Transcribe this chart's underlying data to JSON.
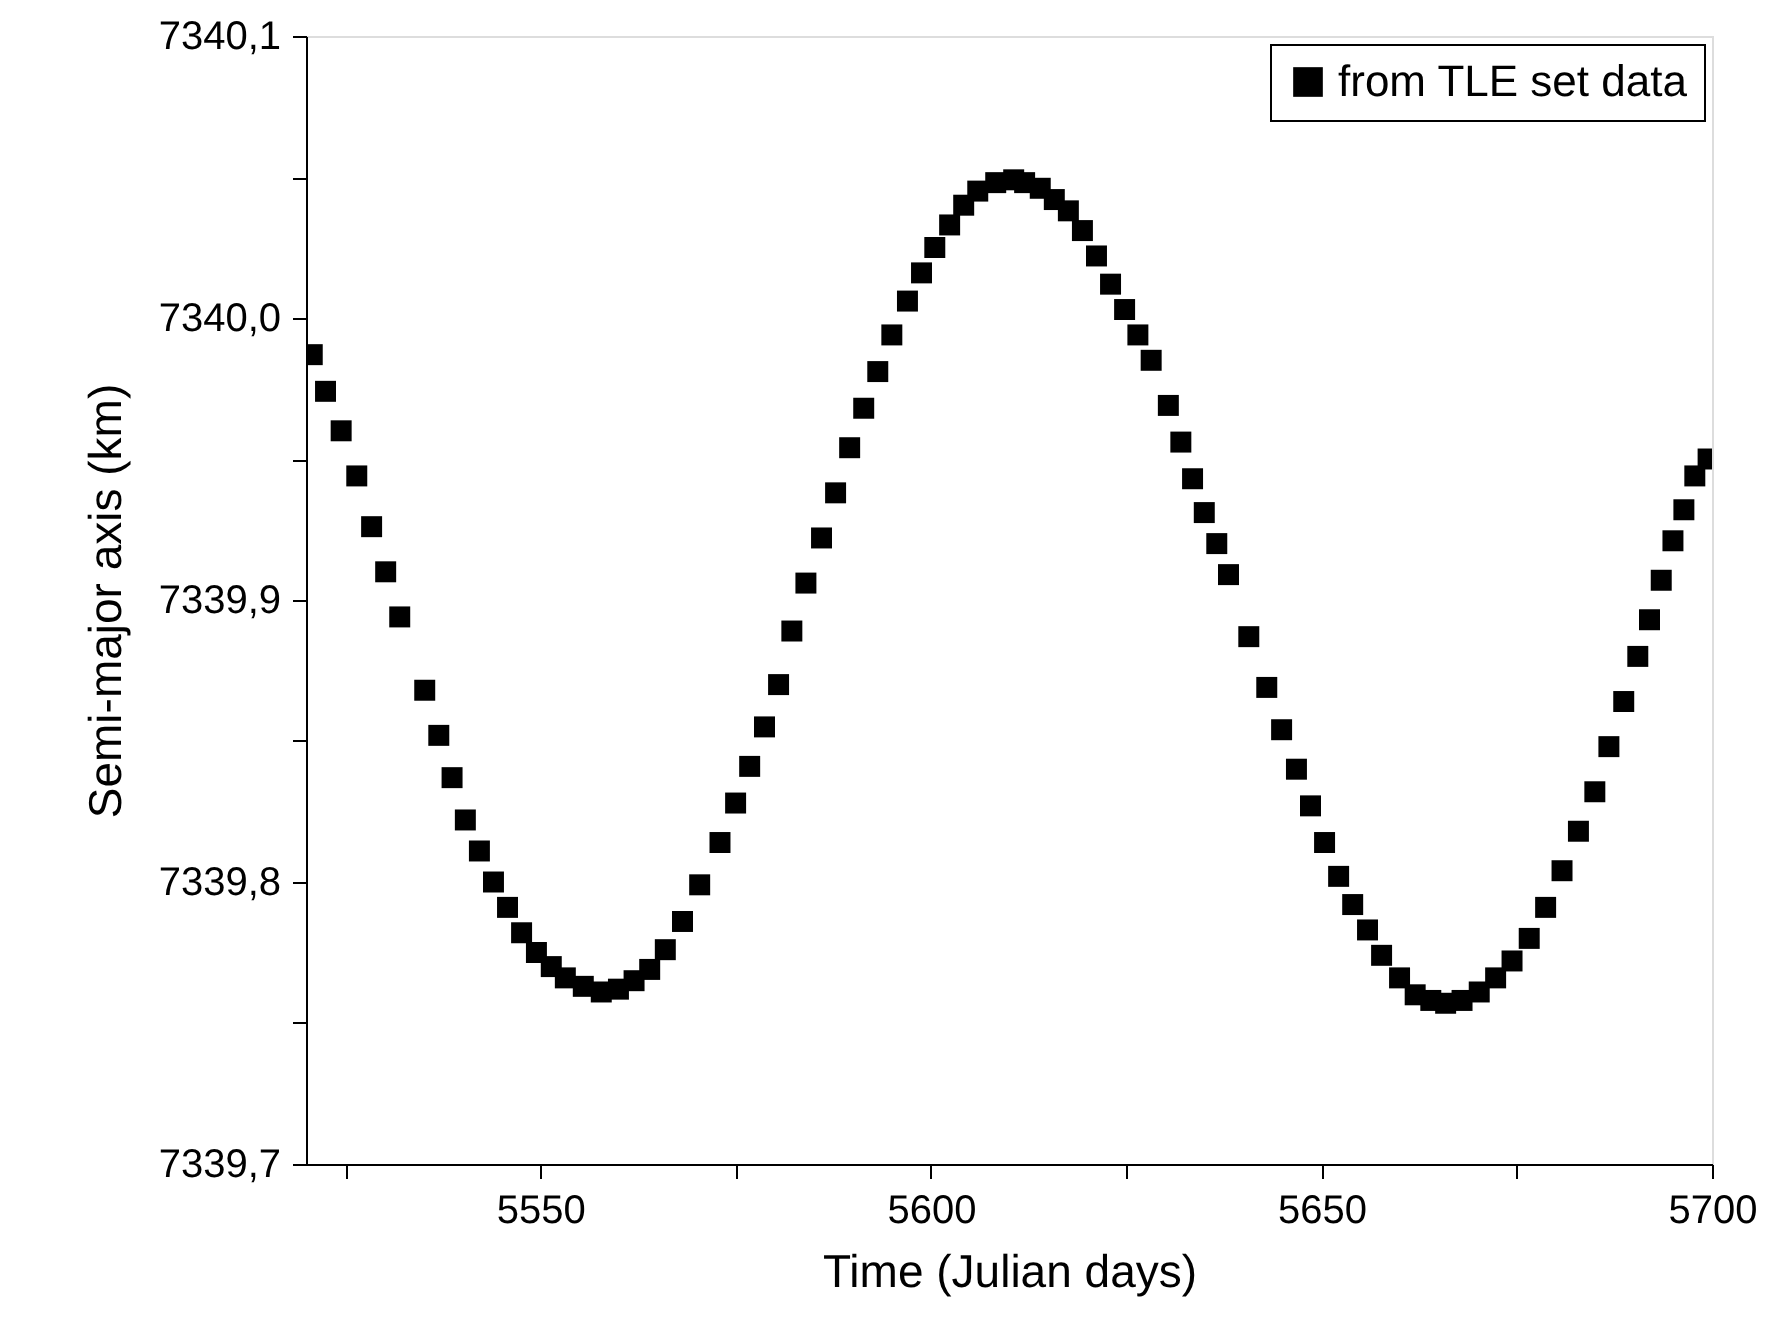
{
  "chart_data": {
    "type": "scatter",
    "xlabel": "Time (Julian days)",
    "ylabel": "Semi-major axis (km)",
    "xlim": [
      5520,
      5700
    ],
    "ylim": [
      7339.7,
      7340.1
    ],
    "xticks": [
      {
        "value": 5525,
        "label": null
      },
      5550,
      {
        "value": 5575,
        "label": null
      },
      5600,
      {
        "value": 5625,
        "label": null
      },
      5650,
      {
        "value": 5675,
        "label": null
      },
      5700
    ],
    "yticks": [
      {
        "value": 7339.7,
        "label": "7339,7"
      },
      {
        "value": 7339.75,
        "label": null
      },
      {
        "value": 7339.8,
        "label": "7339,8"
      },
      {
        "value": 7339.85,
        "label": null
      },
      {
        "value": 7339.9,
        "label": "7339,9"
      },
      {
        "value": 7339.95,
        "label": null
      },
      {
        "value": 7340.0,
        "label": "7340,0"
      },
      {
        "value": 7340.05,
        "label": null
      },
      {
        "value": 7340.1,
        "label": "7340,1"
      }
    ],
    "marker": "square",
    "legend": "top right",
    "grid": false,
    "series": [
      {
        "name": "from TLE set data",
        "color": "#000000",
        "x": [
          5520.8,
          5522.5,
          5524.5,
          5526.5,
          5528.4,
          5530.2,
          5532,
          5535.2,
          5537,
          5538.7,
          5540.4,
          5542.2,
          5544,
          5545.8,
          5547.6,
          5549.5,
          5551.4,
          5553.2,
          5555.5,
          5557.8,
          5560,
          5562,
          5564,
          5566,
          5568.2,
          5570.4,
          5573,
          5575,
          5576.8,
          5578.7,
          5580.5,
          5582.2,
          5584,
          5586,
          5587.8,
          5589.6,
          5591.4,
          5593.2,
          5595,
          5597,
          5598.8,
          5600.5,
          5602.4,
          5604.2,
          5606,
          5608.3,
          5610.6,
          5612,
          5614,
          5615.8,
          5617.6,
          5619.4,
          5621.2,
          5623,
          5624.8,
          5626.5,
          5628.2,
          5630.4,
          5632,
          5633.5,
          5635,
          5636.6,
          5638.1,
          5640.7,
          5643,
          5644.9,
          5646.8,
          5648.6,
          5650.4,
          5652.2,
          5654,
          5655.9,
          5657.7,
          5660,
          5662,
          5664,
          5665.9,
          5668,
          5670.2,
          5672.3,
          5674.4,
          5676.6,
          5678.7,
          5680.8,
          5682.9,
          5685,
          5686.8,
          5688.7,
          5690.5,
          5692,
          5693.5,
          5695,
          5696.4,
          5697.8,
          5699.5
        ],
        "values": [
          7339.987,
          7339.974,
          7339.96,
          7339.944,
          7339.926,
          7339.91,
          7339.894,
          7339.868,
          7339.852,
          7339.837,
          7339.822,
          7339.811,
          7339.8,
          7339.791,
          7339.782,
          7339.775,
          7339.77,
          7339.766,
          7339.763,
          7339.761,
          7339.762,
          7339.765,
          7339.769,
          7339.776,
          7339.786,
          7339.799,
          7339.814,
          7339.828,
          7339.841,
          7339.855,
          7339.87,
          7339.889,
          7339.906,
          7339.922,
          7339.938,
          7339.954,
          7339.968,
          7339.981,
          7339.994,
          7340.006,
          7340.016,
          7340.025,
          7340.033,
          7340.04,
          7340.045,
          7340.048,
          7340.049,
          7340.048,
          7340.046,
          7340.042,
          7340.038,
          7340.031,
          7340.022,
          7340.012,
          7340.003,
          7339.994,
          7339.985,
          7339.969,
          7339.956,
          7339.943,
          7339.931,
          7339.92,
          7339.909,
          7339.887,
          7339.869,
          7339.854,
          7339.84,
          7339.827,
          7339.814,
          7339.802,
          7339.792,
          7339.783,
          7339.774,
          7339.766,
          7339.76,
          7339.758,
          7339.757,
          7339.758,
          7339.761,
          7339.766,
          7339.772,
          7339.78,
          7339.791,
          7339.804,
          7339.818,
          7339.832,
          7339.848,
          7339.864,
          7339.88,
          7339.893,
          7339.907,
          7339.921,
          7339.932,
          7339.944,
          7339.95
        ]
      }
    ]
  }
}
